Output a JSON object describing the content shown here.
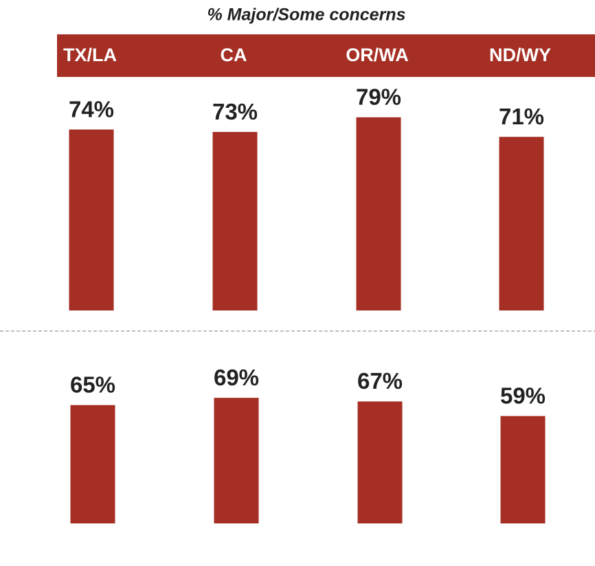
{
  "chart_data": {
    "type": "bar",
    "title": "% Major/Some concerns",
    "categories": [
      "TX/LA",
      "CA",
      "OR/WA",
      "ND/WY"
    ],
    "ylim": [
      0,
      100
    ],
    "series": [
      {
        "color": "#a52f24",
        "values": [
          74,
          73,
          79,
          71
        ],
        "value_labels": [
          "74%",
          "73%",
          "79%",
          "71%"
        ]
      },
      {
        "color": "#a52f24",
        "values": [
          65,
          69,
          67,
          59
        ],
        "value_labels": [
          "65%",
          "69%",
          "67%",
          "59%"
        ]
      }
    ]
  }
}
